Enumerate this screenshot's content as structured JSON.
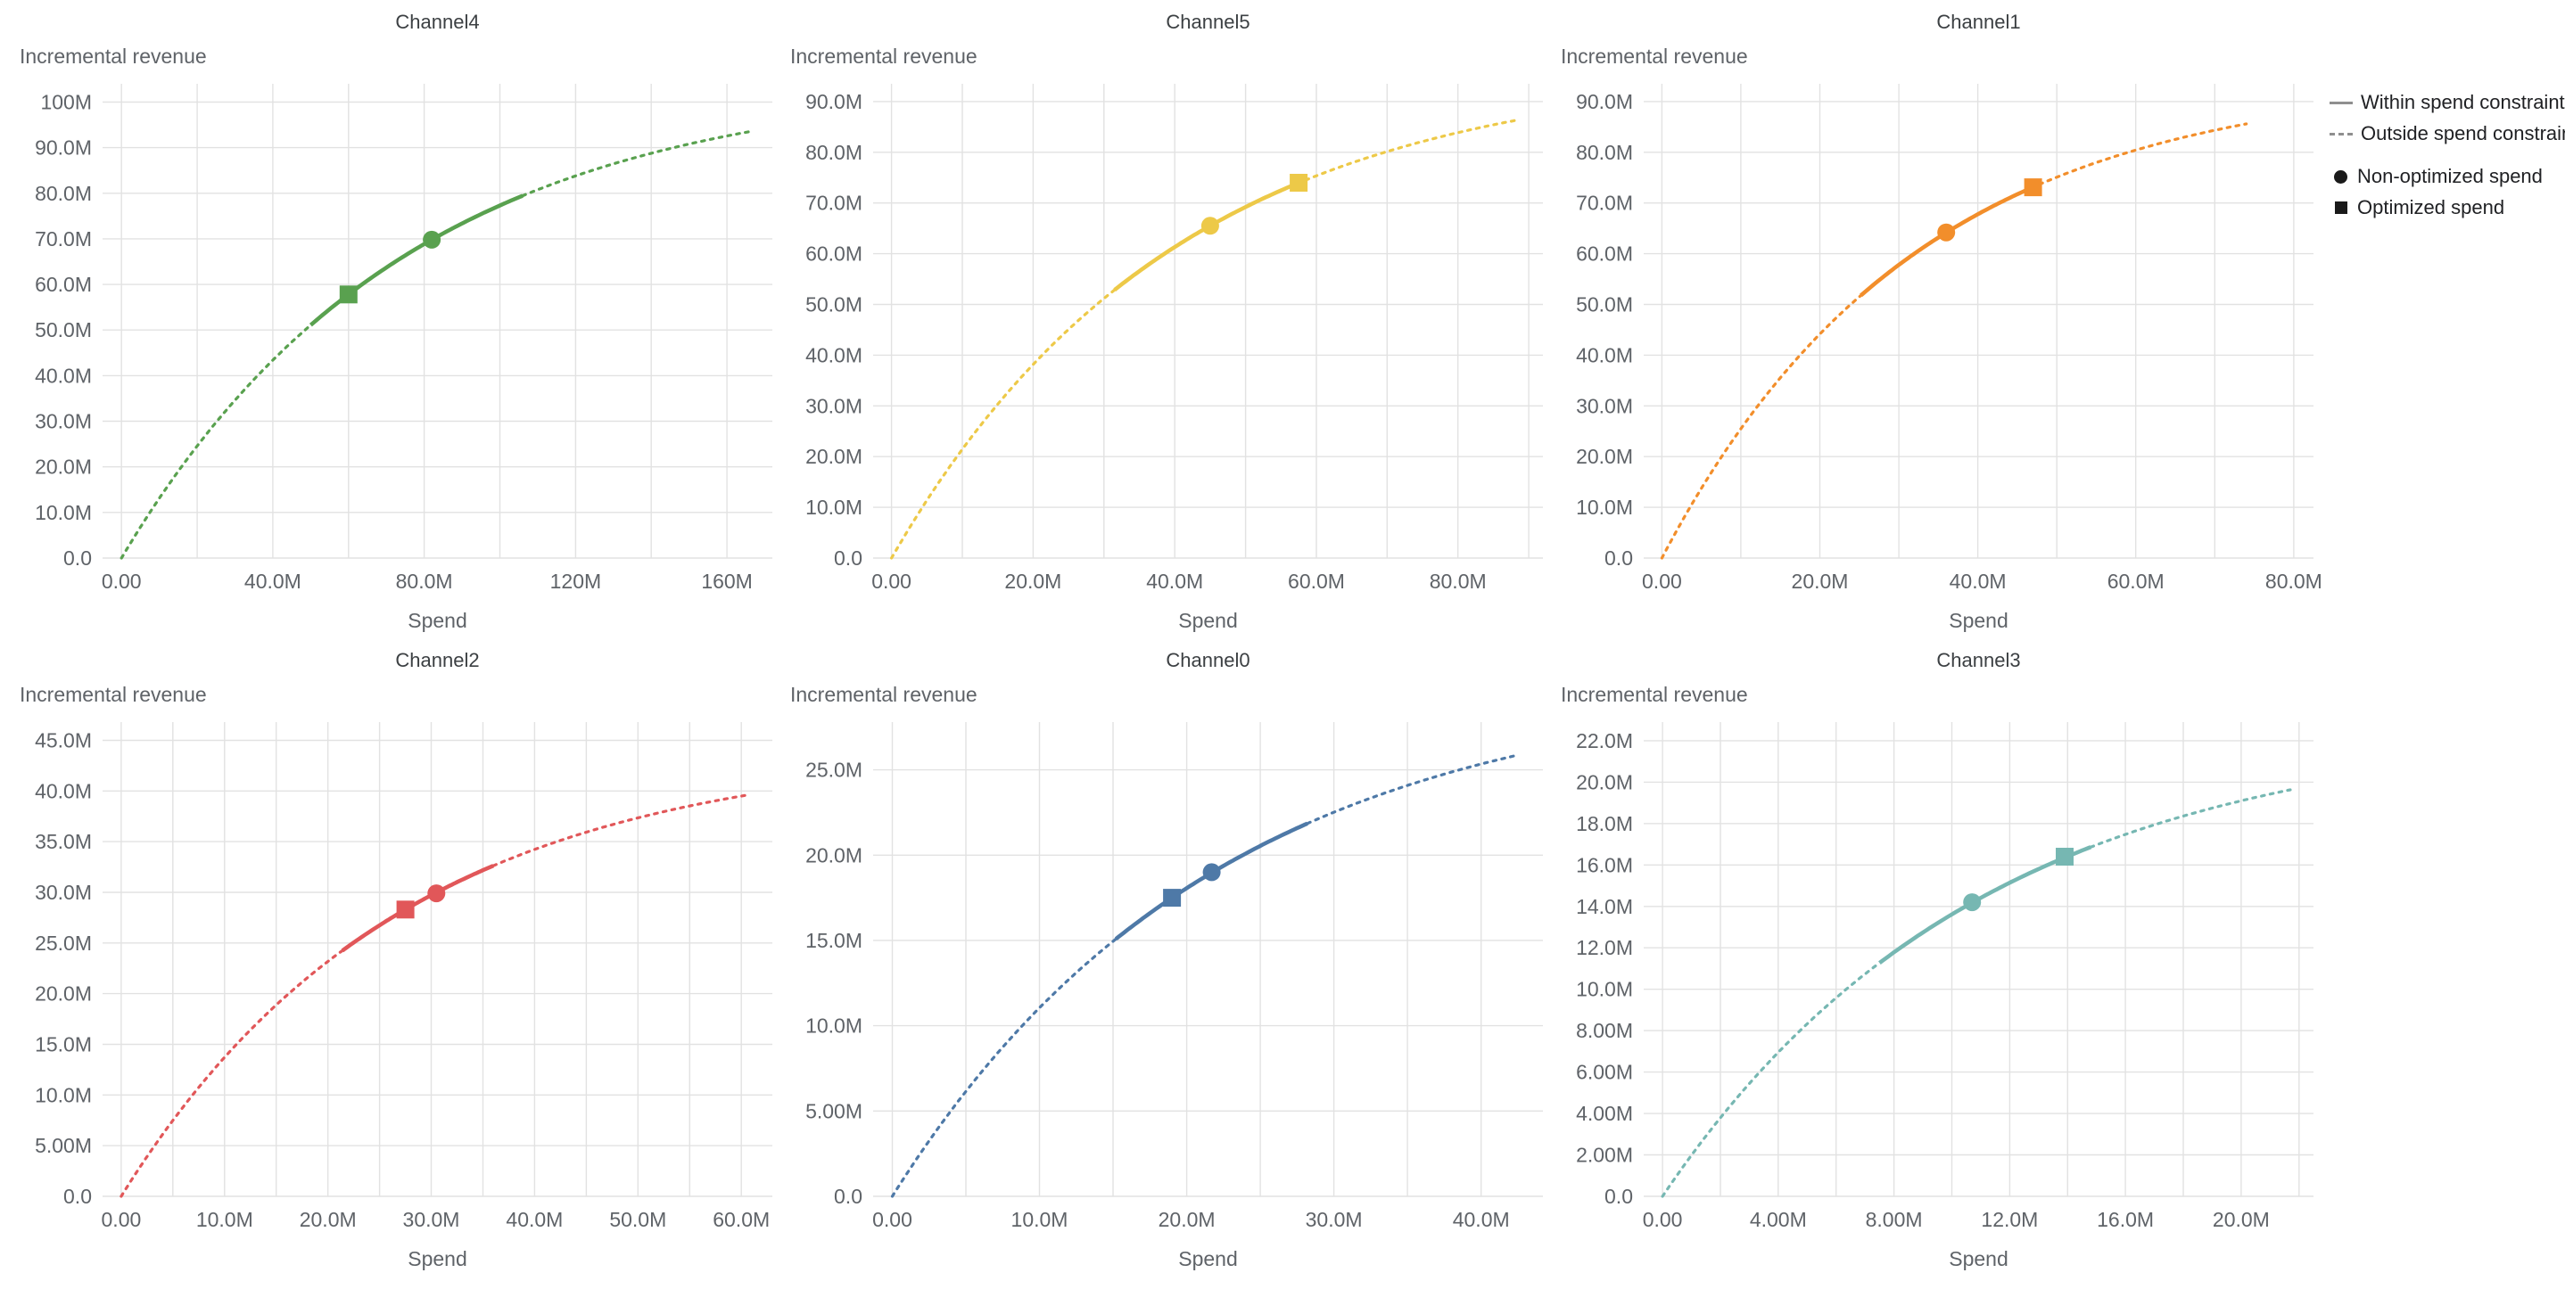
{
  "chart_data": {
    "type": "line",
    "ylabel": "Incremental revenue",
    "xlabel": "Spend",
    "grid": true,
    "grid_color": "#e2e2e2",
    "axis_text_color": "#5f6368",
    "title_color": "#3c4043",
    "legend_position": "top-right",
    "legend_line_color": "#8f8f8f",
    "legend_marker_color": "#1a1a1a",
    "legend": [
      {
        "label": "Within spend constraint",
        "swatch": "solid-line"
      },
      {
        "label": "Outside spend constraint",
        "swatch": "dashed-line"
      },
      {
        "label": "Non-optimized spend",
        "swatch": "circle"
      },
      {
        "label": "Optimized spend",
        "swatch": "square"
      }
    ],
    "charts": [
      {
        "title": "Channel4",
        "color": "#59a14f",
        "curve": {
          "ymax": 105,
          "scale": 75,
          "x_end": 166
        },
        "solid_range": [
          50,
          106
        ],
        "non_optimized_spend": {
          "x": 82,
          "y": 69.8
        },
        "optimized_spend": {
          "x": 60,
          "y": 57.8
        },
        "xlim": [
          -5,
          172
        ],
        "ylim": [
          0,
          104
        ],
        "x_ticks": [
          {
            "v": 0,
            "label": "0.00"
          },
          {
            "v": 40,
            "label": "40.0M"
          },
          {
            "v": 80,
            "label": "80.0M"
          },
          {
            "v": 120,
            "label": "120M"
          },
          {
            "v": 160,
            "label": "160M"
          }
        ],
        "y_ticks": [
          {
            "v": 0,
            "label": "0.0"
          },
          {
            "v": 10,
            "label": "10.0M"
          },
          {
            "v": 20,
            "label": "20.0M"
          },
          {
            "v": 30,
            "label": "30.0M"
          },
          {
            "v": 40,
            "label": "40.0M"
          },
          {
            "v": 50,
            "label": "50.0M"
          },
          {
            "v": 60,
            "label": "60.0M"
          },
          {
            "v": 70,
            "label": "70.0M"
          },
          {
            "v": 80,
            "label": "80.0M"
          },
          {
            "v": 90,
            "label": "90.0M"
          },
          {
            "v": 100,
            "label": "100M"
          }
        ]
      },
      {
        "title": "Channel5",
        "color": "#edc948",
        "curve": {
          "ymax": 97,
          "scale": 40,
          "x_end": 88.5
        },
        "solid_range": [
          31.5,
          58.5
        ],
        "non_optimized_spend": {
          "x": 45,
          "y": 65.5
        },
        "optimized_spend": {
          "x": 57.5,
          "y": 74
        },
        "xlim": [
          -2.6,
          92
        ],
        "ylim": [
          0,
          93.5
        ],
        "x_ticks": [
          {
            "v": 0,
            "label": "0.00"
          },
          {
            "v": 20,
            "label": "20.0M"
          },
          {
            "v": 40,
            "label": "40.0M"
          },
          {
            "v": 60,
            "label": "60.0M"
          },
          {
            "v": 80,
            "label": "80.0M"
          }
        ],
        "y_ticks": [
          {
            "v": 0,
            "label": "0.0"
          },
          {
            "v": 10,
            "label": "10.0M"
          },
          {
            "v": 20,
            "label": "20.0M"
          },
          {
            "v": 30,
            "label": "30.0M"
          },
          {
            "v": 40,
            "label": "40.0M"
          },
          {
            "v": 50,
            "label": "50.0M"
          },
          {
            "v": 60,
            "label": "60.0M"
          },
          {
            "v": 70,
            "label": "70.0M"
          },
          {
            "v": 80,
            "label": "80.0M"
          },
          {
            "v": 90,
            "label": "90.0M"
          }
        ]
      },
      {
        "title": "Channel1",
        "color": "#f28e2b",
        "curve": {
          "ymax": 95,
          "scale": 32,
          "x_end": 74
        },
        "solid_range": [
          25.2,
          46.8
        ],
        "non_optimized_spend": {
          "x": 36,
          "y": 64.2
        },
        "optimized_spend": {
          "x": 47,
          "y": 73.1
        },
        "xlim": [
          -2.3,
          82.5
        ],
        "ylim": [
          0,
          93.5
        ],
        "x_ticks": [
          {
            "v": 0,
            "label": "0.00"
          },
          {
            "v": 20,
            "label": "20.0M"
          },
          {
            "v": 40,
            "label": "40.0M"
          },
          {
            "v": 60,
            "label": "60.0M"
          },
          {
            "v": 80,
            "label": "80.0M"
          }
        ],
        "y_ticks": [
          {
            "v": 0,
            "label": "0.0"
          },
          {
            "v": 10,
            "label": "10.0M"
          },
          {
            "v": 20,
            "label": "20.0M"
          },
          {
            "v": 30,
            "label": "30.0M"
          },
          {
            "v": 40,
            "label": "40.0M"
          },
          {
            "v": 50,
            "label": "50.0M"
          },
          {
            "v": 60,
            "label": "60.0M"
          },
          {
            "v": 70,
            "label": "70.0M"
          },
          {
            "v": 80,
            "label": "80.0M"
          },
          {
            "v": 90,
            "label": "90.0M"
          }
        ]
      },
      {
        "title": "Channel2",
        "color": "#e15759",
        "curve": {
          "ymax": 44.3,
          "scale": 27,
          "x_end": 60.5
        },
        "solid_range": [
          21.4,
          36
        ],
        "non_optimized_spend": {
          "x": 30.5,
          "y": 29.9
        },
        "optimized_spend": {
          "x": 27.5,
          "y": 28.3
        },
        "xlim": [
          -1.8,
          63
        ],
        "ylim": [
          0,
          46.8
        ],
        "x_ticks": [
          {
            "v": 0,
            "label": "0.00"
          },
          {
            "v": 10,
            "label": "10.0M"
          },
          {
            "v": 20,
            "label": "20.0M"
          },
          {
            "v": 30,
            "label": "30.0M"
          },
          {
            "v": 40,
            "label": "40.0M"
          },
          {
            "v": 50,
            "label": "50.0M"
          },
          {
            "v": 60,
            "label": "60.0M"
          }
        ],
        "y_ticks": [
          {
            "v": 0,
            "label": "0.0"
          },
          {
            "v": 5,
            "label": "5.00M"
          },
          {
            "v": 10,
            "label": "10.0M"
          },
          {
            "v": 15,
            "label": "15.0M"
          },
          {
            "v": 20,
            "label": "20.0M"
          },
          {
            "v": 25,
            "label": "25.0M"
          },
          {
            "v": 30,
            "label": "30.0M"
          },
          {
            "v": 35,
            "label": "35.0M"
          },
          {
            "v": 40,
            "label": "40.0M"
          },
          {
            "v": 45,
            "label": "45.0M"
          }
        ]
      },
      {
        "title": "Channel0",
        "color": "#4e79a7",
        "curve": {
          "ymax": 30.25,
          "scale": 22,
          "x_end": 42.5
        },
        "solid_range": [
          15.2,
          28.2
        ],
        "non_optimized_spend": {
          "x": 21.7,
          "y": 19
        },
        "optimized_spend": {
          "x": 19,
          "y": 17.5
        },
        "xlim": [
          -1.3,
          44.2
        ],
        "ylim": [
          0,
          27.8
        ],
        "x_ticks": [
          {
            "v": 0,
            "label": "0.00"
          },
          {
            "v": 10,
            "label": "10.0M"
          },
          {
            "v": 20,
            "label": "20.0M"
          },
          {
            "v": 30,
            "label": "30.0M"
          },
          {
            "v": 40,
            "label": "40.0M"
          }
        ],
        "y_ticks": [
          {
            "v": 0,
            "label": "0.0"
          },
          {
            "v": 5,
            "label": "5.00M"
          },
          {
            "v": 10,
            "label": "10.0M"
          },
          {
            "v": 15,
            "label": "15.0M"
          },
          {
            "v": 20,
            "label": "20.0M"
          },
          {
            "v": 25,
            "label": "25.0M"
          }
        ]
      },
      {
        "title": "Channel3",
        "color": "#76b7b2",
        "curve": {
          "ymax": 22.8,
          "scale": 11,
          "x_end": 21.7
        },
        "solid_range": [
          7.5,
          14.8
        ],
        "non_optimized_spend": {
          "x": 10.7,
          "y": 14.2
        },
        "optimized_spend": {
          "x": 13.9,
          "y": 16.4
        },
        "xlim": [
          -0.65,
          22.5
        ],
        "ylim": [
          0,
          22.9
        ],
        "x_ticks": [
          {
            "v": 0,
            "label": "0.00"
          },
          {
            "v": 4,
            "label": "4.00M"
          },
          {
            "v": 8,
            "label": "8.00M"
          },
          {
            "v": 12,
            "label": "12.0M"
          },
          {
            "v": 16,
            "label": "16.0M"
          },
          {
            "v": 20,
            "label": "20.0M"
          }
        ],
        "y_ticks": [
          {
            "v": 0,
            "label": "0.0"
          },
          {
            "v": 2,
            "label": "2.00M"
          },
          {
            "v": 4,
            "label": "4.00M"
          },
          {
            "v": 6,
            "label": "6.00M"
          },
          {
            "v": 8,
            "label": "8.00M"
          },
          {
            "v": 10,
            "label": "10.0M"
          },
          {
            "v": 12,
            "label": "12.0M"
          },
          {
            "v": 14,
            "label": "14.0M"
          },
          {
            "v": 16,
            "label": "16.0M"
          },
          {
            "v": 18,
            "label": "18.0M"
          },
          {
            "v": 20,
            "label": "20.0M"
          },
          {
            "v": 22,
            "label": "22.0M"
          }
        ]
      }
    ]
  }
}
